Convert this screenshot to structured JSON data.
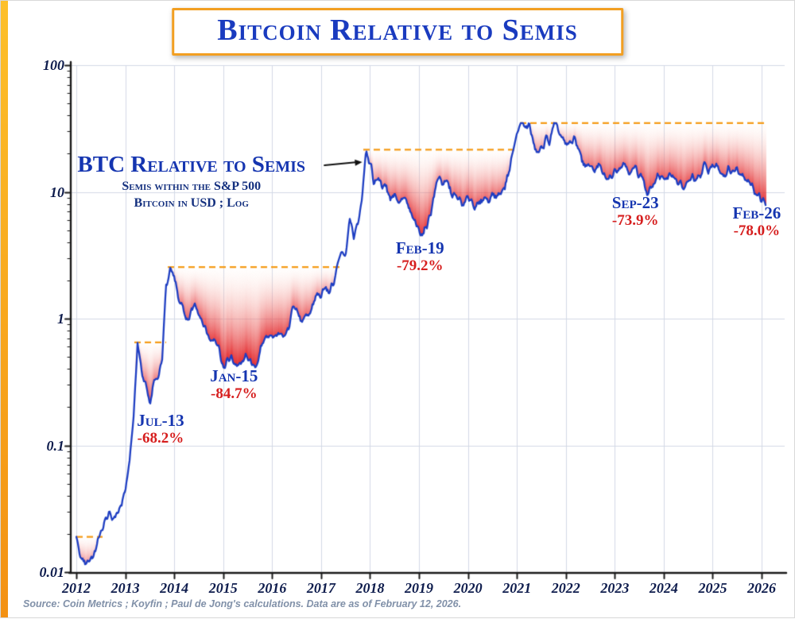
{
  "footer": {
    "source": "Source: Coin Metrics ; Koyfin ; Paul de Jong's calculations. Data are as of February 12, 2026."
  },
  "chart_data": {
    "type": "line",
    "title": "Bitcoin Relative to Semis",
    "y_scale": "log",
    "ylim": [
      0.01,
      100
    ],
    "xlim": [
      2011.886,
      2026.47
    ],
    "grid": true,
    "legend_position": "none",
    "colors": {
      "line": "#1e3ec2",
      "peak_dash": "#f59b17",
      "drawdown_fill": "#e11c20",
      "grid": "#d3d9e6",
      "axis": "#1a1a1a",
      "blue_text": "#1535b0",
      "red_text": "#d61e1e"
    },
    "y_ticks": [
      {
        "label": "100",
        "value": 100
      },
      {
        "label": "10",
        "value": 10
      },
      {
        "label": "1",
        "value": 1
      },
      {
        "label": "0.1",
        "value": 0.1
      },
      {
        "label": "0.01",
        "value": 0.01
      }
    ],
    "x_ticks": [
      "2012",
      "2013",
      "2014",
      "2015",
      "2016",
      "2017",
      "2018",
      "2019",
      "2020",
      "2021",
      "2022",
      "2023",
      "2024",
      "2025",
      "2026"
    ],
    "label_block": {
      "main": "BTC Relative to Semis",
      "sub1": "Semis within the S&P 500",
      "sub2": "Bitcoin in USD ; Log",
      "x": 2014.35,
      "y": 16.0,
      "arrow": {
        "x1": 2017.07,
        "y1": 16.2,
        "x2": 2017.84,
        "y2": 17.2
      }
    },
    "annotations": [
      {
        "label": "Jul-13",
        "pct": "-68.2%",
        "x": 2013.72,
        "y": 0.135
      },
      {
        "label": "Jan-15",
        "pct": "-84.7%",
        "x": 2015.22,
        "y": 0.3
      },
      {
        "label": "Feb-19",
        "pct": "-79.2%",
        "x": 2019.02,
        "y": 3.1
      },
      {
        "label": "Sep-23",
        "pct": "-73.9%",
        "x": 2023.42,
        "y": 7.0
      },
      {
        "label": "Feb-26",
        "pct": "-78.0%",
        "x": 2025.9,
        "y": 5.8
      }
    ],
    "series": [
      {
        "name": "BTC relative to Semis",
        "x_start": 2012.0,
        "x_step_months": 1,
        "values": [
          0.019,
          0.0135,
          0.0115,
          0.0118,
          0.0125,
          0.016,
          0.021,
          0.026,
          0.031,
          0.027,
          0.03,
          0.034,
          0.046,
          0.075,
          0.16,
          0.65,
          0.38,
          0.31,
          0.207,
          0.3,
          0.33,
          0.46,
          1.9,
          2.56,
          2.1,
          1.35,
          1.3,
          0.95,
          1.05,
          1.3,
          1.15,
          0.95,
          0.78,
          0.66,
          0.72,
          0.6,
          0.392,
          0.46,
          0.49,
          0.44,
          0.42,
          0.46,
          0.52,
          0.41,
          0.43,
          0.53,
          0.68,
          0.77,
          0.7,
          0.76,
          0.73,
          0.76,
          0.82,
          1.18,
          1.12,
          0.95,
          1.02,
          1.12,
          1.25,
          1.55,
          1.5,
          1.75,
          1.6,
          1.85,
          2.7,
          3.4,
          3.0,
          6.3,
          4.4,
          5.6,
          9.0,
          22.3,
          17.0,
          11.5,
          13.5,
          10.5,
          11.5,
          8.8,
          10.0,
          8.2,
          8.8,
          8.2,
          6.6,
          5.6,
          5.1,
          4.6,
          5.6,
          7.2,
          10.5,
          13.8,
          11.0,
          12.0,
          9.6,
          9.0,
          8.6,
          7.6,
          9.2,
          8.6,
          7.4,
          8.2,
          9.2,
          8.6,
          9.6,
          9.2,
          9.8,
          11.2,
          14.5,
          20.5,
          29,
          35.4,
          32,
          34.5,
          24,
          20,
          21.5,
          26,
          25,
          33,
          31,
          27,
          22.5,
          24.5,
          26,
          23,
          18,
          15,
          16.5,
          15,
          16,
          14,
          12.5,
          13,
          15,
          15.8,
          17,
          16,
          14,
          15.5,
          14,
          12.6,
          9.25,
          11,
          12,
          13.6,
          13.2,
          12.2,
          14.2,
          12.6,
          11.6,
          10.6,
          11.6,
          13.2,
          12.2,
          13.2,
          16.2,
          15.2,
          15.6,
          16.4,
          14.6,
          13.6,
          15.2,
          14.2,
          15.6,
          14.2,
          13.1,
          12.1,
          10.6,
          9.6,
          8.6,
          7.8
        ]
      }
    ]
  }
}
